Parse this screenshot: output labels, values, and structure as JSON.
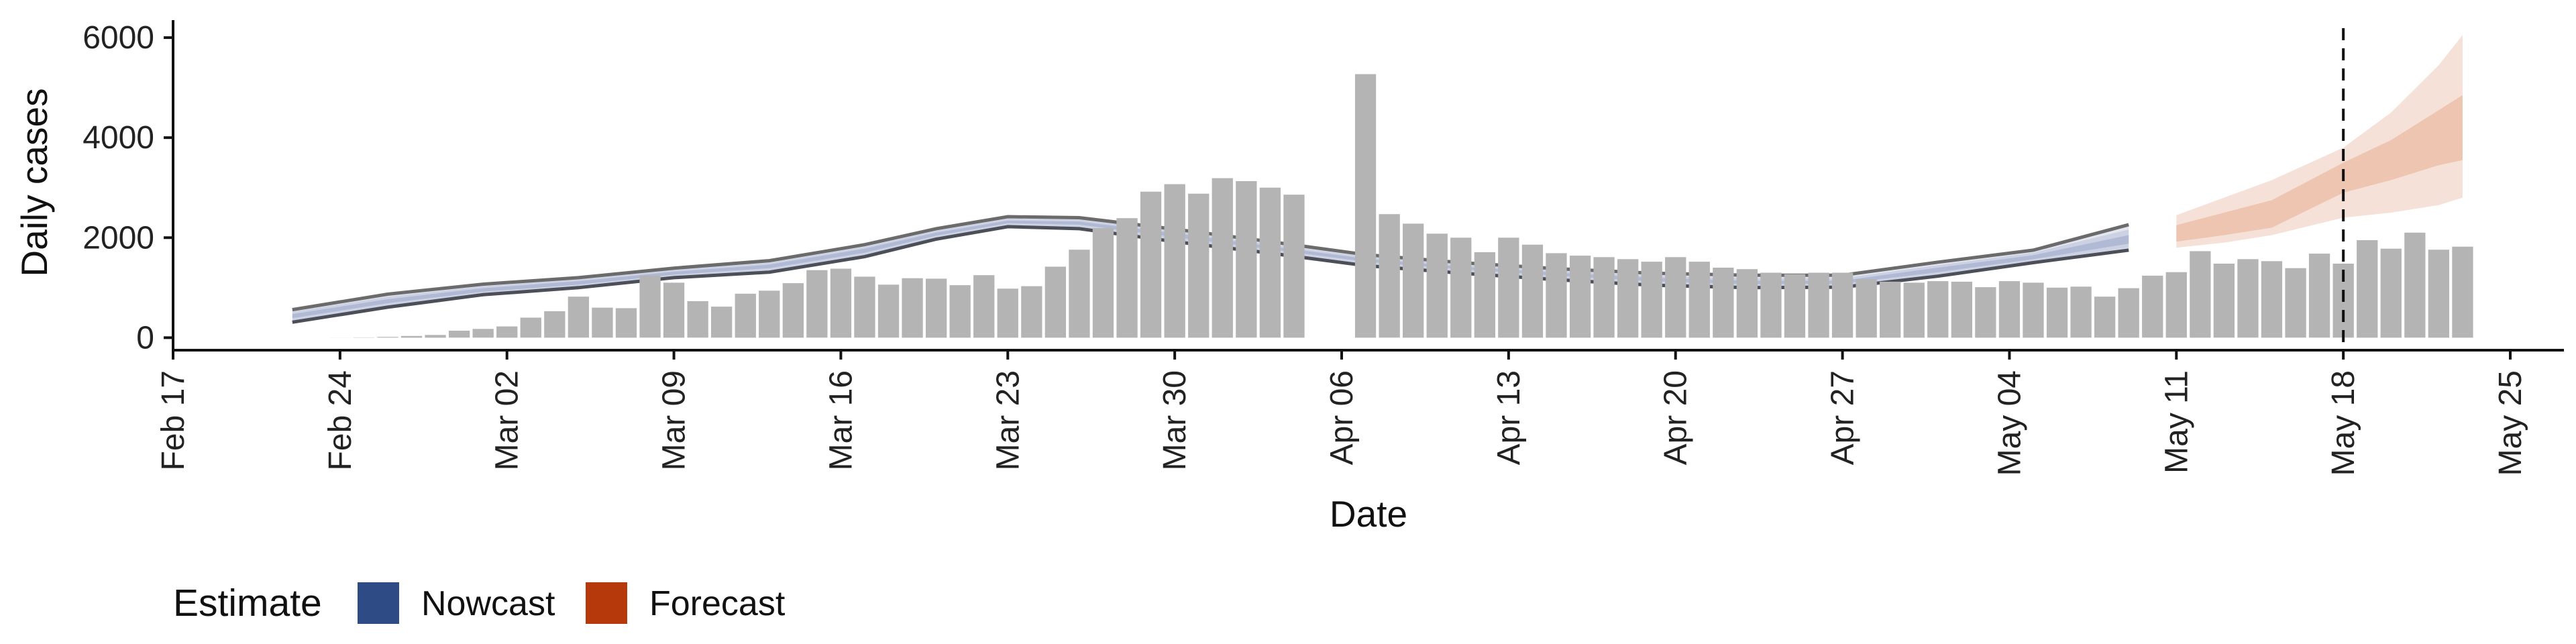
{
  "chart_data": {
    "type": "bar",
    "title": "",
    "xlabel": "Date",
    "ylabel": "Daily cases",
    "x_tick_labels": [
      "Feb 17",
      "Feb 24",
      "Mar 02",
      "Mar 09",
      "Mar 16",
      "Mar 23",
      "Mar 30",
      "Apr 06",
      "Apr 13",
      "Apr 20",
      "Apr 27",
      "May 04",
      "May 11",
      "May 18",
      "May 25"
    ],
    "y_ticks": [
      0,
      2000,
      4000,
      6000
    ],
    "ylim": [
      -250,
      6350
    ],
    "x_range": [
      "2020-02-17",
      "2020-05-25"
    ],
    "grid": false,
    "legend_position": "bottom-left",
    "dashed_line_date": "2020-05-18",
    "start_date": "2020-02-17",
    "bar_start_date": "2020-02-22",
    "colors": {
      "bars": "#b4b4b4",
      "nowcast": "#2f4b85",
      "forecast": "#b5390a",
      "envelope_line": "#6b6b6b"
    },
    "reported_cases": [
      0,
      0,
      2,
      6,
      15,
      35,
      55,
      140,
      175,
      225,
      400,
      530,
      820,
      600,
      590,
      1240,
      1100,
      730,
      620,
      880,
      940,
      1090,
      1350,
      1380,
      1220,
      1060,
      1190,
      1180,
      1050,
      1250,
      980,
      1030,
      1420,
      1760,
      2190,
      2390,
      2920,
      3070,
      2880,
      3190,
      3130,
      3000,
      2860,
      null,
      null,
      5270,
      2470,
      2280,
      2080,
      2000,
      1710,
      2000,
      1860,
      1690,
      1640,
      1610,
      1570,
      1520,
      1610,
      1520,
      1400,
      1370,
      1300,
      1270,
      1300,
      1300,
      1170,
      1120,
      1100,
      1130,
      1120,
      1010,
      1130,
      1100,
      1000,
      1020,
      820,
      990,
      1240,
      1310,
      1730,
      1480,
      1570,
      1530,
      1390,
      1680,
      1480,
      1950,
      1780,
      2100,
      1760,
      1820
    ],
    "envelope": {
      "x": [
        "2020-02-22",
        "2020-02-26",
        "2020-03-01",
        "2020-03-05",
        "2020-03-09",
        "2020-03-13",
        "2020-03-17",
        "2020-03-20",
        "2020-03-23",
        "2020-03-26",
        "2020-03-30",
        "2020-04-03",
        "2020-04-07",
        "2020-04-11",
        "2020-04-15",
        "2020-04-19",
        "2020-04-23",
        "2020-04-27",
        "2020-05-01",
        "2020-05-05",
        "2020-05-09"
      ],
      "upper": [
        560,
        870,
        1070,
        1200,
        1390,
        1540,
        1860,
        2180,
        2420,
        2400,
        2170,
        1920,
        1660,
        1500,
        1380,
        1290,
        1250,
        1250,
        1510,
        1750,
        2260
      ],
      "lower": [
        310,
        610,
        860,
        1000,
        1200,
        1310,
        1620,
        1970,
        2220,
        2180,
        1920,
        1690,
        1440,
        1290,
        1160,
        1050,
        1000,
        1010,
        1230,
        1500,
        1750
      ],
      "nowcast_outer_upper": [
        520,
        820,
        1030,
        1170,
        1360,
        1500,
        1820,
        2140,
        2380,
        2360,
        2130,
        1870,
        1620,
        1460,
        1340,
        1240,
        1190,
        1190,
        1450,
        1700,
        2160
      ],
      "nowcast_outer_lower": [
        340,
        640,
        880,
        1020,
        1220,
        1340,
        1650,
        2000,
        2250,
        2210,
        1960,
        1720,
        1470,
        1320,
        1190,
        1080,
        1030,
        1040,
        1260,
        1520,
        1800
      ],
      "nowcast_inner_upper": [
        470,
        770,
        990,
        1130,
        1320,
        1460,
        1780,
        2100,
        2340,
        2320,
        2090,
        1830,
        1580,
        1420,
        1300,
        1200,
        1140,
        1140,
        1400,
        1650,
        2050
      ],
      "nowcast_inner_lower": [
        390,
        690,
        920,
        1060,
        1260,
        1390,
        1700,
        2040,
        2290,
        2260,
        2010,
        1770,
        1520,
        1370,
        1240,
        1130,
        1070,
        1080,
        1310,
        1570,
        1880
      ]
    },
    "forecast": {
      "x": [
        "2020-05-11",
        "2020-05-13",
        "2020-05-15",
        "2020-05-18",
        "2020-05-20",
        "2020-05-22",
        "2020-05-23"
      ],
      "outer_upper": [
        2450,
        2800,
        3150,
        3800,
        4500,
        5450,
        6050
      ],
      "inner_upper": [
        2250,
        2500,
        2750,
        3500,
        3950,
        4550,
        4850
      ],
      "inner_lower": [
        1920,
        2050,
        2200,
        2900,
        3150,
        3450,
        3550
      ],
      "outer_lower": [
        1800,
        1900,
        2050,
        2400,
        2500,
        2650,
        2800
      ]
    },
    "legend": {
      "title": "Estimate",
      "items": [
        {
          "label": "Nowcast",
          "color": "#2f4b85"
        },
        {
          "label": "Forecast",
          "color": "#b5390a"
        }
      ]
    }
  }
}
